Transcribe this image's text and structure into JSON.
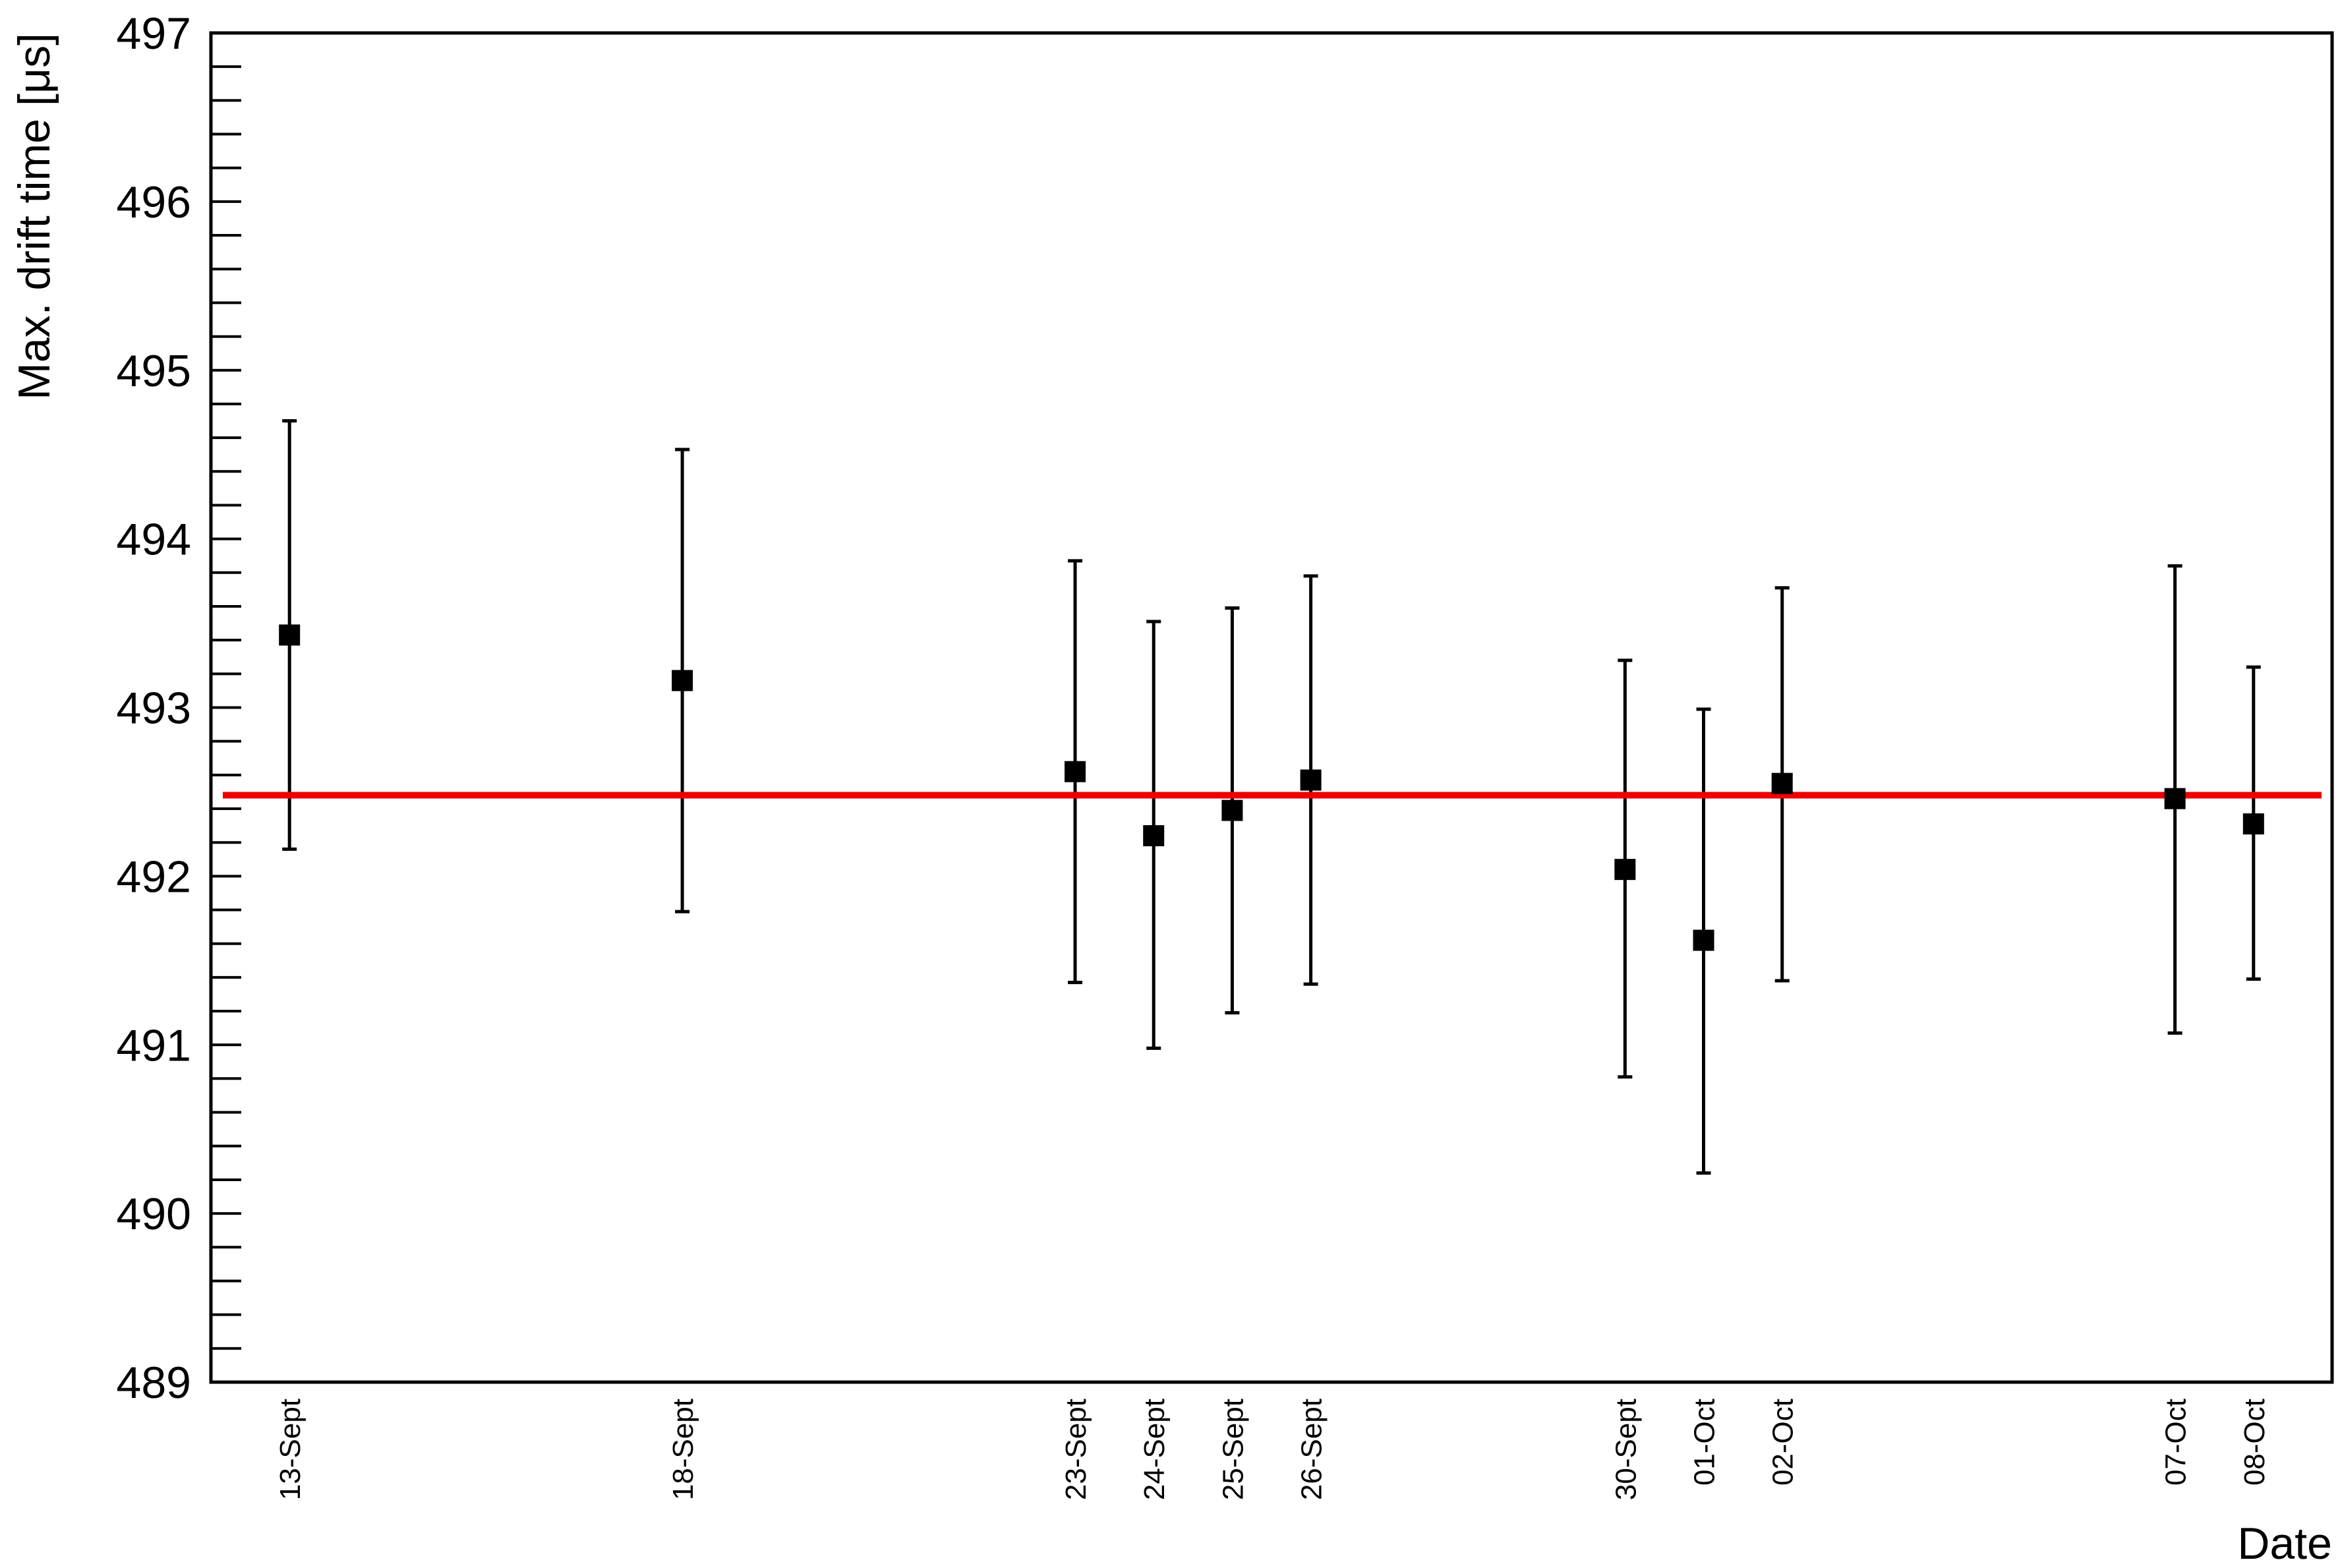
{
  "chart_data": {
    "type": "scatter",
    "title": "",
    "xlabel": "Date",
    "ylabel": "Max. drift time [μs]",
    "ylim": [
      489,
      497
    ],
    "ytick_labels": [
      "489",
      "490",
      "491",
      "492",
      "493",
      "494",
      "495",
      "496",
      "497"
    ],
    "x_axis_type": "date",
    "xlim": [
      "2013-09-12",
      "2013-10-09"
    ],
    "grid": false,
    "legend": "none",
    "categories": [
      "13-Sept",
      "18-Sept",
      "23-Sept",
      "24-Sept",
      "25-Sept",
      "26-Sept",
      "30-Sept",
      "01-Oct",
      "02-Oct",
      "07-Oct",
      "08-Oct"
    ],
    "series": [
      {
        "x": [
          "2013-09-13",
          "2013-09-18",
          "2013-09-23",
          "2013-09-24",
          "2013-09-25",
          "2013-09-26",
          "2013-09-30",
          "2013-10-01",
          "2013-10-02",
          "2013-10-07",
          "2013-10-08"
        ],
        "values": [
          493.43,
          493.16,
          492.62,
          492.24,
          492.39,
          492.57,
          492.04,
          491.62,
          492.55,
          492.46,
          492.31
        ],
        "error_low": [
          492.16,
          491.79,
          491.37,
          490.98,
          491.19,
          491.36,
          490.81,
          490.24,
          491.38,
          491.07,
          491.39
        ],
        "error_high": [
          494.7,
          494.53,
          493.87,
          493.51,
          493.59,
          493.78,
          493.28,
          492.99,
          493.71,
          493.84,
          493.24
        ],
        "marker": "square",
        "color": "#000000"
      }
    ],
    "reference_line": {
      "y": 492.48,
      "color": "#ee0000"
    }
  }
}
